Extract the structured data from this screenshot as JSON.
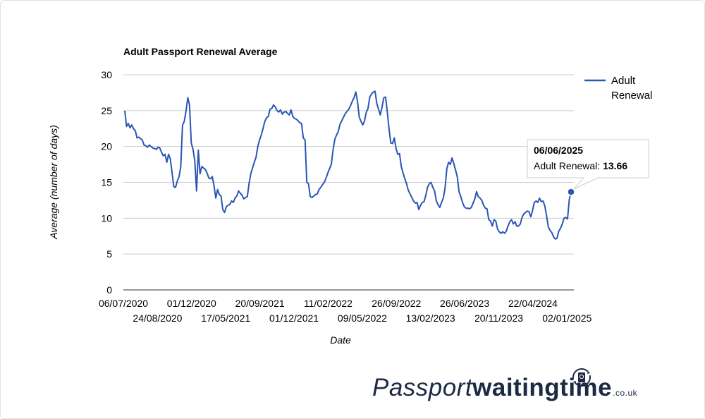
{
  "chart_data": {
    "type": "line",
    "title": "Adult Passport Renewal Average",
    "xlabel": "Date",
    "ylabel": "Average (number of days)",
    "ylim": [
      0,
      30
    ],
    "yticks": [
      0,
      5,
      10,
      15,
      20,
      25,
      30
    ],
    "grid": true,
    "legend": "right",
    "xticks_row1": [
      "06/07/2020",
      "01/12/2020",
      "20/09/2021",
      "11/02/2022",
      "26/09/2022",
      "26/06/2023",
      "22/04/2024"
    ],
    "xticks_row2": [
      "24/08/2020",
      "17/05/2021",
      "01/12/2021",
      "09/05/2022",
      "13/02/2023",
      "20/11/2023",
      "02/01/2025"
    ],
    "series": [
      {
        "name": "Adult Renewal",
        "color": "#2a56b4",
        "values": [
          25,
          22.8,
          23.2,
          22.6,
          23,
          22.5,
          22.2,
          21.2,
          21.3,
          21.1,
          20.9,
          20.2,
          20.1,
          19.9,
          20.2,
          20,
          19.8,
          19.7,
          19.6,
          19.9,
          19.8,
          19.2,
          18.7,
          18.9,
          17.8,
          18.9,
          18.3,
          16.4,
          14.4,
          14.3,
          15.2,
          15.8,
          17.2,
          23,
          23.5,
          25,
          26.8,
          25.8,
          20.5,
          19.6,
          18,
          13.8,
          19.5,
          16.2,
          17.2,
          17,
          16.8,
          16.3,
          15.6,
          15.5,
          15.8,
          14.5,
          12.8,
          14,
          13.3,
          13.1,
          11.2,
          10.8,
          11.6,
          11.8,
          11.9,
          12.4,
          12.2,
          12.8,
          13.1,
          13.8,
          13.5,
          13.2,
          12.7,
          12.9,
          13,
          14.8,
          16.2,
          17,
          17.8,
          18.5,
          20,
          20.9,
          21.6,
          22.5,
          23.5,
          24,
          24.2,
          25.2,
          25.3,
          25.8,
          25.5,
          25,
          24.8,
          25.1,
          24.5,
          24.8,
          24.9,
          24.6,
          24.4,
          25.1,
          24.2,
          23.9,
          23.8,
          23.6,
          23.3,
          23.2,
          21.2,
          20.9,
          15,
          14.8,
          13,
          12.9,
          13.1,
          13.3,
          13.4,
          14,
          14.3,
          14.7,
          15,
          15.6,
          16.3,
          16.9,
          17.5,
          19.5,
          21,
          21.6,
          22.1,
          23.1,
          23.6,
          24.1,
          24.6,
          24.9,
          25.2,
          25.7,
          26.3,
          26.8,
          27.6,
          26.2,
          24.1,
          23.5,
          23,
          23.6,
          24.8,
          25.3,
          26.9,
          27.3,
          27.6,
          27.7,
          26,
          25.2,
          24.4,
          25.5,
          26.8,
          26.9,
          24.8,
          22.5,
          20.5,
          20.4,
          21.2,
          19.7,
          18.9,
          19,
          17.2,
          16.3,
          15.5,
          14.8,
          13.9,
          13.4,
          12.9,
          12.4,
          12.1,
          12.2,
          11.2,
          11.8,
          12.2,
          12.3,
          13.2,
          14.3,
          14.8,
          15,
          14.3,
          13.8,
          12.4,
          11.9,
          11.5,
          12.2,
          12.8,
          14.2,
          16.9,
          17.8,
          17.5,
          18.4,
          17.6,
          16.7,
          15.8,
          13.7,
          13,
          12.2,
          11.6,
          11.4,
          11.4,
          11.3,
          11.5,
          12.1,
          12.7,
          13.7,
          13,
          12.8,
          12.5,
          11.8,
          11.4,
          11.3,
          9.8,
          9.6,
          8.9,
          9.8,
          9.6,
          8.5,
          8.1,
          7.9,
          8.1,
          7.9,
          8.2,
          8.9,
          9.5,
          9.8,
          9.2,
          9.5,
          8.9,
          8.9,
          9.2,
          10.1,
          10.6,
          10.8,
          11,
          10.9,
          10.2,
          11.1,
          12.2,
          12.4,
          12.2,
          12.8,
          12.3,
          12.4,
          11.7,
          10.4,
          8.8,
          8.3,
          8,
          7.4,
          7.1,
          7.2,
          8.2,
          8.6,
          9.2,
          10,
          10.1,
          9.9,
          12.6,
          13.66
        ]
      }
    ],
    "tooltip": {
      "date": "06/06/2025",
      "label": "Adult Renewal:",
      "value": "13.66"
    }
  },
  "brand": {
    "word_light": "Passport",
    "word_bold": "waitingtime",
    "tld": ".co.uk"
  },
  "icons": [
    "passport-refresh-icon"
  ]
}
